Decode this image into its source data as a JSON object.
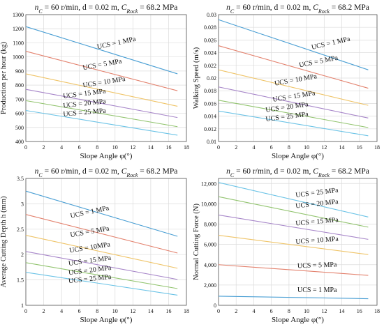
{
  "chart_data": [
    {
      "type": "line",
      "title_parts": [
        "n",
        "C",
        " = 60 r/min, d = 0.02 m, ",
        "C",
        "Rock",
        " = 68.2 MPa"
      ],
      "xlabel": "Slope Angle φ(°)",
      "ylabel": "Production per hour (kg)",
      "xlim": [
        0,
        18
      ],
      "ylim": [
        400,
        1300
      ],
      "xticks": [
        0,
        2,
        4,
        6,
        8,
        10,
        12,
        14,
        16,
        18
      ],
      "yticks": [
        400,
        500,
        600,
        700,
        800,
        900,
        1000,
        1100,
        1200,
        1300
      ],
      "ytick_labels": [
        "400",
        "500",
        "600",
        "700",
        "800",
        "900",
        "1000",
        "1100",
        "1200",
        "1300"
      ],
      "grid": true,
      "series": [
        {
          "name": "UCS = 1 MPa",
          "color": "#4a9fd4",
          "x": [
            0,
            17
          ],
          "y": [
            1215,
            880
          ],
          "label_at": [
            10.2,
            1085
          ],
          "label_angle": -12
        },
        {
          "name": "UCS = 5 MPa",
          "color": "#e3826e",
          "x": [
            0,
            17
          ],
          "y": [
            1040,
            760
          ],
          "label_at": [
            8.6,
            932
          ],
          "label_angle": -10
        },
        {
          "name": "UCS = 10 MPa",
          "color": "#efc468",
          "x": [
            0,
            17
          ],
          "y": [
            880,
            650
          ],
          "label_at": [
            8.8,
            807
          ],
          "label_angle": -9
        },
        {
          "name": "UCS = 15 MPa",
          "color": "#a786c9",
          "x": [
            0,
            17
          ],
          "y": [
            770,
            570
          ],
          "label_at": [
            6.6,
            725
          ],
          "label_angle": -7
        },
        {
          "name": "UCS = 20 MPa",
          "color": "#92c46f",
          "x": [
            0,
            17
          ],
          "y": [
            690,
            505
          ],
          "label_at": [
            6.6,
            655
          ],
          "label_angle": -6
        },
        {
          "name": "UCS = 25 MPa",
          "color": "#6bc3e6",
          "x": [
            0,
            17
          ],
          "y": [
            620,
            445
          ],
          "label_at": [
            6.6,
            592
          ],
          "label_angle": -5
        }
      ]
    },
    {
      "type": "line",
      "title_parts": [
        "n",
        "C",
        " = 60 r/min, d = 0.02 m, ",
        "C",
        "Rock",
        " = 68.2 MPa"
      ],
      "xlabel": "Slope Angle φ(°)",
      "ylabel": "Walking Speed (m/s)",
      "xlim": [
        0,
        18
      ],
      "ylim": [
        0.01,
        0.03
      ],
      "xticks": [
        0,
        2,
        4,
        6,
        8,
        10,
        12,
        14,
        16,
        18
      ],
      "yticks": [
        0.01,
        0.012,
        0.014,
        0.016,
        0.018,
        0.02,
        0.022,
        0.024,
        0.026,
        0.028,
        0.03
      ],
      "ytick_labels": [
        "0.01",
        "0.012",
        "0.014",
        "0.016",
        "0.018",
        "0.02",
        "0.022",
        "0.024",
        "0.026",
        "0.028",
        "0.03"
      ],
      "grid": true,
      "series": [
        {
          "name": "UCS = 1 MPa",
          "color": "#4a9fd4",
          "x": [
            0,
            17
          ],
          "y": [
            0.0292,
            0.0213
          ],
          "label_at": [
            12.8,
            0.0252
          ],
          "label_angle": -13
        },
        {
          "name": "UCS = 5 MPa",
          "color": "#e3826e",
          "x": [
            0,
            17
          ],
          "y": [
            0.0251,
            0.0184
          ],
          "label_at": [
            11.4,
            0.0223
          ],
          "label_angle": -11
        },
        {
          "name": "UCS = 10 MPa",
          "color": "#efc468",
          "x": [
            0,
            17
          ],
          "y": [
            0.0213,
            0.0157
          ],
          "label_at": [
            8.8,
            0.0194
          ],
          "label_angle": -10
        },
        {
          "name": "UCS = 15 MPa",
          "color": "#a786c9",
          "x": [
            0,
            17
          ],
          "y": [
            0.0186,
            0.0137
          ],
          "label_at": [
            8.6,
            0.0168
          ],
          "label_angle": -9
        },
        {
          "name": "UCS = 20 MPa",
          "color": "#92c46f",
          "x": [
            0,
            17
          ],
          "y": [
            0.0165,
            0.0122
          ],
          "label_at": [
            7.8,
            0.0151
          ],
          "label_angle": -8
        },
        {
          "name": "UCS = 25 MPa",
          "color": "#6bc3e6",
          "x": [
            0,
            17
          ],
          "y": [
            0.0148,
            0.0109
          ],
          "label_at": [
            7.8,
            0.0136
          ],
          "label_angle": -7
        }
      ]
    },
    {
      "type": "line",
      "title_parts": [
        "n",
        "C",
        " = 60 r/min, d = 0.02 m, ",
        "C",
        "Rock",
        " = 68.2 MPa"
      ],
      "xlabel": "Slope Angle φ(°)",
      "ylabel": "Average Cutting Depth h (mm)",
      "xlim": [
        0,
        18
      ],
      "ylim": [
        1,
        3.5
      ],
      "xticks": [
        0,
        2,
        4,
        6,
        8,
        10,
        12,
        14,
        16,
        18
      ],
      "yticks": [
        1,
        1.5,
        2,
        2.5,
        3,
        3.5
      ],
      "ytick_labels": [
        "1",
        "1.5",
        "2",
        "2.5",
        "3",
        "3.5"
      ],
      "grid": true,
      "series": [
        {
          "name": "UCS = 1 MPa",
          "color": "#4a9fd4",
          "x": [
            0,
            17
          ],
          "y": [
            3.25,
            2.36
          ],
          "label_at": [
            7.2,
            2.8
          ],
          "label_angle": -12
        },
        {
          "name": "UCS = 5 MPa",
          "color": "#e3826e",
          "x": [
            0,
            17
          ],
          "y": [
            2.79,
            2.03
          ],
          "label_at": [
            7.2,
            2.41
          ],
          "label_angle": -10
        },
        {
          "name": "UCS = 10MPa",
          "color": "#efc468",
          "x": [
            0,
            17
          ],
          "y": [
            2.38,
            1.73
          ],
          "label_at": [
            7.2,
            2.1
          ],
          "label_angle": -9
        },
        {
          "name": "UCS = 15 MPa",
          "color": "#a786c9",
          "x": [
            0,
            17
          ],
          "y": [
            2.06,
            1.51
          ],
          "label_at": [
            7.2,
            1.84
          ],
          "label_angle": -8
        },
        {
          "name": "UCS = 20 MPa",
          "color": "#92c46f",
          "x": [
            0,
            17
          ],
          "y": [
            1.84,
            1.33
          ],
          "label_at": [
            7.2,
            1.65
          ],
          "label_angle": -7
        },
        {
          "name": "UCS = 25 MPa",
          "color": "#6bc3e6",
          "x": [
            0,
            17
          ],
          "y": [
            1.65,
            1.2
          ],
          "label_at": [
            7.2,
            1.48
          ],
          "label_angle": -6
        }
      ]
    },
    {
      "type": "line",
      "title_parts": [
        "n",
        "C",
        " = 60 r/min, d = 0.02 m, ",
        "C",
        "Rock",
        " = 68.2 MPa"
      ],
      "xlabel": "Slope Angle φ(°)",
      "ylabel": "Normal Cutting Force (N)",
      "xlim": [
        0,
        18
      ],
      "ylim": [
        0,
        12500
      ],
      "xticks": [
        0,
        2,
        4,
        6,
        8,
        10,
        12,
        14,
        16,
        18
      ],
      "yticks": [
        0,
        2000,
        4000,
        6000,
        8000,
        10000,
        12000
      ],
      "ytick_labels": [
        "0",
        "2,000",
        "4,000",
        "6,000",
        "8,000",
        "10,000",
        "12,000"
      ],
      "grid": true,
      "series": [
        {
          "name": "UCS = 25 MPa",
          "color": "#6bc3e6",
          "x": [
            0,
            17
          ],
          "y": [
            12100,
            8700
          ],
          "label_at": [
            11.2,
            10900
          ],
          "label_angle": -7
        },
        {
          "name": "UCS = 20 MPa",
          "color": "#92c46f",
          "x": [
            0,
            17
          ],
          "y": [
            10700,
            7700
          ],
          "label_at": [
            11.2,
            9800
          ],
          "label_angle": -6
        },
        {
          "name": "UCS = 15 MPa",
          "color": "#a786c9",
          "x": [
            0,
            17
          ],
          "y": [
            8900,
            6500
          ],
          "label_at": [
            11.2,
            8050
          ],
          "label_angle": -5
        },
        {
          "name": "UCS = 10 MPa",
          "color": "#efc468",
          "x": [
            0,
            17
          ],
          "y": [
            6900,
            5000
          ],
          "label_at": [
            11.2,
            6200
          ],
          "label_angle": -4
        },
        {
          "name": "UCS = 5 MPa",
          "color": "#e3826e",
          "x": [
            0,
            17
          ],
          "y": [
            4000,
            2950
          ],
          "label_at": [
            11.2,
            3750
          ],
          "label_angle": -2
        },
        {
          "name": "UCS = 1 MPa",
          "color": "#4a9fd4",
          "x": [
            0,
            17
          ],
          "y": [
            900,
            650
          ],
          "label_at": [
            11.2,
            1300
          ],
          "label_angle": 0
        }
      ]
    }
  ]
}
